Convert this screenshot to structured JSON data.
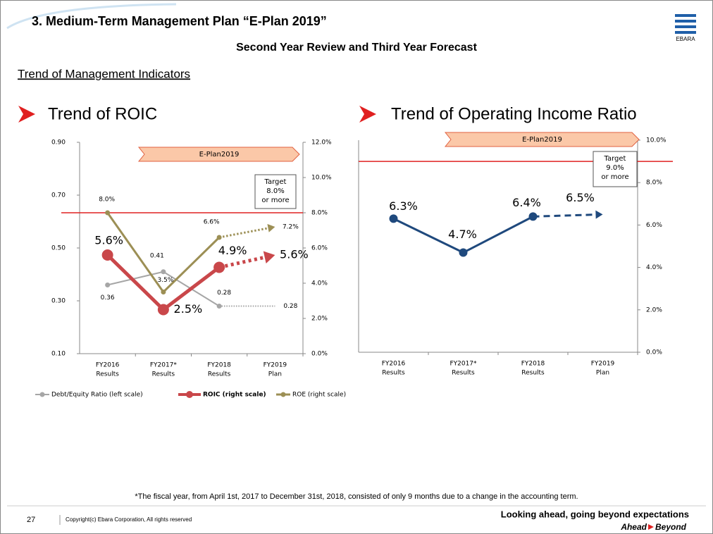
{
  "header": {
    "title": "3. Medium-Term Management Plan “E-Plan 2019”",
    "subtitle": "Second Year Review and Third Year Forecast",
    "logo": "EBARA"
  },
  "section_title": "Trend of Management Indicators",
  "chart_data": [
    {
      "type": "line",
      "title": "Trend of ROIC",
      "categories": [
        [
          "FY2016",
          "Results"
        ],
        [
          "FY2017*",
          "Results"
        ],
        [
          "FY2018",
          "Results"
        ],
        [
          "FY2019",
          "Plan"
        ]
      ],
      "ylim": [
        0.1,
        0.9
      ],
      "yticks": [
        {
          "value": 0.1,
          "label": "0.10"
        },
        {
          "value": 0.3,
          "label": "0.30"
        },
        {
          "value": 0.5,
          "label": "0.50"
        },
        {
          "value": 0.7,
          "label": "0.70"
        },
        {
          "value": 0.9,
          "label": "0.90"
        }
      ],
      "y2lim": [
        0,
        12
      ],
      "y2ticks": [
        {
          "value": 0,
          "label": "0.0%"
        },
        {
          "value": 2,
          "label": "2.0%"
        },
        {
          "value": 4,
          "label": "4.0%"
        },
        {
          "value": 6,
          "label": "6.0%"
        },
        {
          "value": 8,
          "label": "8.0%"
        },
        {
          "value": 10,
          "label": "10.0%"
        },
        {
          "value": 12,
          "label": "12.0%"
        }
      ],
      "series": [
        {
          "name": "Debt/Equity Ratio (left scale)",
          "color": "#a6a6a6",
          "line_width": 2,
          "marker_size": 3.5,
          "values": [
            0.36,
            0.41,
            0.28,
            0.28
          ]
        },
        {
          "name": "ROIC (right scale)",
          "color": "#c9474a",
          "axis": "y2",
          "line_width": 5,
          "marker_size": 8,
          "end_marker": "arrow",
          "values": [
            5.6,
            2.5,
            4.9,
            5.6
          ],
          "value_labels": [
            "5.6%",
            "2.5%",
            "4.9%",
            "5.6%"
          ]
        },
        {
          "name": "ROE (right scale)",
          "color": "#9c8f55",
          "axis": "y2",
          "line_width": 3,
          "marker_size": 3.5,
          "end_marker": "arrow",
          "values": [
            8.0,
            3.5,
            6.6,
            7.2
          ],
          "value_labels": [
            "8.0%",
            "3.5%",
            "6.6%",
            "7.2%"
          ]
        }
      ],
      "forecast_style": "dotted",
      "banner": "E-Plan2019",
      "target": {
        "value": 8,
        "axis": "y2",
        "color": "#e02020",
        "label": [
          "Target",
          "8.0%",
          "or more"
        ]
      },
      "legend": "bottom"
    },
    {
      "type": "line",
      "title": "Trend of Operating Income Ratio",
      "categories": [
        [
          "FY2016",
          "Results"
        ],
        [
          "FY2017*",
          "Results"
        ],
        [
          "FY2018",
          "Results"
        ],
        [
          "FY2019",
          "Plan"
        ]
      ],
      "ylim": [
        0,
        10
      ],
      "y_axis": "right",
      "yticks": [
        {
          "value": 0,
          "label": "0.0%"
        },
        {
          "value": 2,
          "label": "2.0%"
        },
        {
          "value": 4,
          "label": "4.0%"
        },
        {
          "value": 6,
          "label": "6.0%"
        },
        {
          "value": 8,
          "label": "8.0%"
        },
        {
          "value": 10,
          "label": "10.0%"
        }
      ],
      "series": [
        {
          "color": "#1f497d",
          "line_width": 3,
          "marker_size": 6,
          "end_marker": "arrow",
          "values": [
            6.3,
            4.7,
            6.4,
            6.5
          ],
          "value_labels": [
            "6.3%",
            "4.7%",
            "6.4%",
            "6.5%"
          ]
        }
      ],
      "forecast_style": "dashed",
      "banner": "E-Plan2019",
      "target": {
        "value": 9,
        "color": "#e02020",
        "label": [
          "Target",
          "9.0%",
          "or more"
        ]
      }
    }
  ],
  "footnote": "*The fiscal year, from April 1st, 2017 to December 31st, 2018, consisted of only 9 months due to a change in the accounting term.",
  "footer": {
    "page": "27",
    "copyright": "Copyright(c) Ebara Corporation, All rights reserved",
    "slogan": "Looking ahead, going beyond expectations",
    "brand": [
      "Ahead",
      "Beyond"
    ]
  }
}
